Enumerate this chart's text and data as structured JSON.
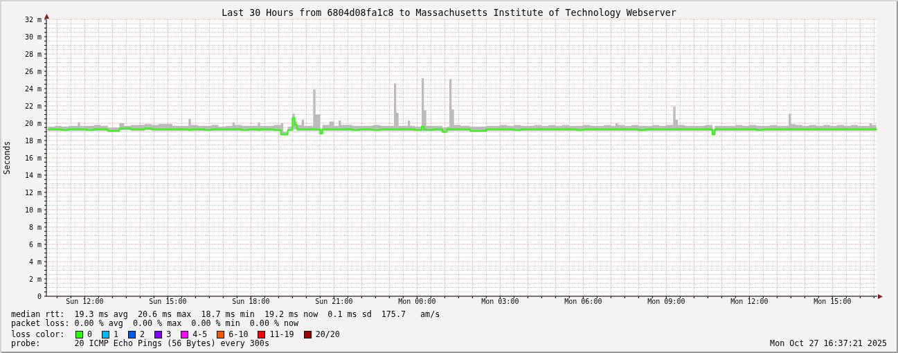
{
  "chart_data": {
    "type": "step",
    "title": "Last 30 Hours from 6804d08fa1c8 to Massachusetts Institute of Technology Webserver",
    "ylabel": "Seconds",
    "legend_title": "loss color:",
    "legend": "bottom",
    "grid": true,
    "xlim": [
      "2025-10-26T10:37",
      "2025-10-27T16:37"
    ],
    "xticks": [
      {
        "value": "2025-10-26T11:00",
        "label": null
      },
      {
        "value": "2025-10-26T11:30",
        "label": null
      },
      {
        "value": "2025-10-26T12:00",
        "label": "Sun 12:00"
      },
      {
        "value": "2025-10-26T12:30",
        "label": null
      },
      {
        "value": "2025-10-26T13:00",
        "label": null
      },
      {
        "value": "2025-10-26T13:30",
        "label": null
      },
      {
        "value": "2025-10-26T14:00",
        "label": null
      },
      {
        "value": "2025-10-26T14:30",
        "label": null
      },
      {
        "value": "2025-10-26T15:00",
        "label": "Sun 15:00"
      },
      {
        "value": "2025-10-26T15:30",
        "label": null
      },
      {
        "value": "2025-10-26T16:00",
        "label": null
      },
      {
        "value": "2025-10-26T16:30",
        "label": null
      },
      {
        "value": "2025-10-26T17:00",
        "label": null
      },
      {
        "value": "2025-10-26T17:30",
        "label": null
      },
      {
        "value": "2025-10-26T18:00",
        "label": "Sun 18:00"
      },
      {
        "value": "2025-10-26T18:30",
        "label": null
      },
      {
        "value": "2025-10-26T19:00",
        "label": null
      },
      {
        "value": "2025-10-26T19:30",
        "label": null
      },
      {
        "value": "2025-10-26T20:00",
        "label": null
      },
      {
        "value": "2025-10-26T20:30",
        "label": null
      },
      {
        "value": "2025-10-26T21:00",
        "label": "Sun 21:00"
      },
      {
        "value": "2025-10-26T21:30",
        "label": null
      },
      {
        "value": "2025-10-26T22:00",
        "label": null
      },
      {
        "value": "2025-10-26T22:30",
        "label": null
      },
      {
        "value": "2025-10-26T23:00",
        "label": null
      },
      {
        "value": "2025-10-26T23:30",
        "label": null
      },
      {
        "value": "2025-10-27T00:00",
        "label": "Mon 00:00"
      },
      {
        "value": "2025-10-27T00:30",
        "label": null
      },
      {
        "value": "2025-10-27T01:00",
        "label": null
      },
      {
        "value": "2025-10-27T01:30",
        "label": null
      },
      {
        "value": "2025-10-27T02:00",
        "label": null
      },
      {
        "value": "2025-10-27T02:30",
        "label": null
      },
      {
        "value": "2025-10-27T03:00",
        "label": "Mon 03:00"
      },
      {
        "value": "2025-10-27T03:30",
        "label": null
      },
      {
        "value": "2025-10-27T04:00",
        "label": null
      },
      {
        "value": "2025-10-27T04:30",
        "label": null
      },
      {
        "value": "2025-10-27T05:00",
        "label": null
      },
      {
        "value": "2025-10-27T05:30",
        "label": null
      },
      {
        "value": "2025-10-27T06:00",
        "label": "Mon 06:00"
      },
      {
        "value": "2025-10-27T06:30",
        "label": null
      },
      {
        "value": "2025-10-27T07:00",
        "label": null
      },
      {
        "value": "2025-10-27T07:30",
        "label": null
      },
      {
        "value": "2025-10-27T08:00",
        "label": null
      },
      {
        "value": "2025-10-27T08:30",
        "label": null
      },
      {
        "value": "2025-10-27T09:00",
        "label": "Mon 09:00"
      },
      {
        "value": "2025-10-27T09:30",
        "label": null
      },
      {
        "value": "2025-10-27T10:00",
        "label": null
      },
      {
        "value": "2025-10-27T10:30",
        "label": null
      },
      {
        "value": "2025-10-27T11:00",
        "label": null
      },
      {
        "value": "2025-10-27T11:30",
        "label": null
      },
      {
        "value": "2025-10-27T12:00",
        "label": "Mon 12:00"
      },
      {
        "value": "2025-10-27T12:30",
        "label": null
      },
      {
        "value": "2025-10-27T13:00",
        "label": null
      },
      {
        "value": "2025-10-27T13:30",
        "label": null
      },
      {
        "value": "2025-10-27T14:00",
        "label": null
      },
      {
        "value": "2025-10-27T14:30",
        "label": null
      },
      {
        "value": "2025-10-27T15:00",
        "label": "Mon 15:00"
      },
      {
        "value": "2025-10-27T15:30",
        "label": null
      },
      {
        "value": "2025-10-27T16:00",
        "label": null
      },
      {
        "value": "2025-10-27T16:30",
        "label": null
      }
    ],
    "ylim": [
      0,
      32
    ],
    "yticks": [
      0,
      {
        "value": 0.5,
        "label": null
      },
      {
        "value": 1,
        "label": null
      },
      {
        "value": 1.5,
        "label": null
      },
      {
        "value": 2,
        "label": "2 m"
      },
      {
        "value": 2.5,
        "label": null
      },
      {
        "value": 3,
        "label": null
      },
      {
        "value": 3.5,
        "label": null
      },
      {
        "value": 4,
        "label": "4 m"
      },
      {
        "value": 4.5,
        "label": null
      },
      {
        "value": 5,
        "label": null
      },
      {
        "value": 5.5,
        "label": null
      },
      {
        "value": 6,
        "label": "6 m"
      },
      {
        "value": 6.5,
        "label": null
      },
      {
        "value": 7,
        "label": null
      },
      {
        "value": 7.5,
        "label": null
      },
      {
        "value": 8,
        "label": "8 m"
      },
      {
        "value": 8.5,
        "label": null
      },
      {
        "value": 9,
        "label": null
      },
      {
        "value": 9.5,
        "label": null
      },
      {
        "value": 10,
        "label": "10 m"
      },
      {
        "value": 10.5,
        "label": null
      },
      {
        "value": 11,
        "label": null
      },
      {
        "value": 11.5,
        "label": null
      },
      {
        "value": 12,
        "label": "12 m"
      },
      {
        "value": 12.5,
        "label": null
      },
      {
        "value": 13,
        "label": null
      },
      {
        "value": 13.5,
        "label": null
      },
      {
        "value": 14,
        "label": "14 m"
      },
      {
        "value": 14.5,
        "label": null
      },
      {
        "value": 15,
        "label": null
      },
      {
        "value": 15.5,
        "label": null
      },
      {
        "value": 16,
        "label": "16 m"
      },
      {
        "value": 16.5,
        "label": null
      },
      {
        "value": 17,
        "label": null
      },
      {
        "value": 17.5,
        "label": null
      },
      {
        "value": 18,
        "label": "18 m"
      },
      {
        "value": 18.5,
        "label": null
      },
      {
        "value": 19,
        "label": null
      },
      {
        "value": 19.5,
        "label": null
      },
      {
        "value": 20,
        "label": "20 m"
      },
      {
        "value": 20.5,
        "label": null
      },
      {
        "value": 21,
        "label": null
      },
      {
        "value": 21.5,
        "label": null
      },
      {
        "value": 22,
        "label": "22 m"
      },
      {
        "value": 22.5,
        "label": null
      },
      {
        "value": 23,
        "label": null
      },
      {
        "value": 23.5,
        "label": null
      },
      {
        "value": 24,
        "label": "24 m"
      },
      {
        "value": 24.5,
        "label": null
      },
      {
        "value": 25,
        "label": null
      },
      {
        "value": 25.5,
        "label": null
      },
      {
        "value": 26,
        "label": "26 m"
      },
      {
        "value": 26.5,
        "label": null
      },
      {
        "value": 27,
        "label": null
      },
      {
        "value": 27.5,
        "label": null
      },
      {
        "value": 28,
        "label": "28 m"
      },
      {
        "value": 28.5,
        "label": null
      },
      {
        "value": 29,
        "label": null
      },
      {
        "value": 29.5,
        "label": null
      },
      {
        "value": 30,
        "label": "30 m"
      },
      {
        "value": 30.5,
        "label": null
      },
      {
        "value": 31,
        "label": null
      },
      {
        "value": 31.5,
        "label": null
      },
      {
        "value": 32,
        "label": "32 m"
      }
    ],
    "x": [
      "2025-10-26T10:40",
      "2025-10-26T10:55",
      "2025-10-26T11:10",
      "2025-10-26T11:25",
      "2025-10-26T11:45",
      "2025-10-26T11:50",
      "2025-10-26T12:05",
      "2025-10-26T12:20",
      "2025-10-26T12:35",
      "2025-10-26T12:50",
      "2025-10-26T13:15",
      "2025-10-26T13:25",
      "2025-10-26T13:40",
      "2025-10-26T13:55",
      "2025-10-26T14:10",
      "2025-10-26T14:25",
      "2025-10-26T14:40",
      "2025-10-26T15:10",
      "2025-10-26T15:25",
      "2025-10-26T15:45",
      "2025-10-26T15:50",
      "2025-10-26T16:05",
      "2025-10-26T16:20",
      "2025-10-26T16:35",
      "2025-10-26T16:50",
      "2025-10-26T17:05",
      "2025-10-26T17:20",
      "2025-10-26T17:25",
      "2025-10-26T17:40",
      "2025-10-26T17:55",
      "2025-10-26T18:15",
      "2025-10-26T18:20",
      "2025-10-26T18:35",
      "2025-10-26T18:50",
      "2025-10-26T19:05",
      "2025-10-26T19:10",
      "2025-10-26T19:20",
      "2025-10-26T19:30",
      "2025-10-26T19:35",
      "2025-10-26T19:40",
      "2025-10-26T19:50",
      "2025-10-26T19:55",
      "2025-10-26T20:15",
      "2025-10-26T20:20",
      "2025-10-26T20:30",
      "2025-10-26T20:35",
      "2025-10-26T20:50",
      "2025-10-26T21:00",
      "2025-10-26T21:10",
      "2025-10-26T21:15",
      "2025-10-26T21:40",
      "2025-10-26T21:55",
      "2025-10-26T22:10",
      "2025-10-26T22:25",
      "2025-10-26T22:40",
      "2025-10-26T22:55",
      "2025-10-26T23:10",
      "2025-10-26T23:15",
      "2025-10-26T23:20",
      "2025-10-26T23:40",
      "2025-10-26T23:45",
      "2025-10-26T23:55",
      "2025-10-27T00:10",
      "2025-10-27T00:15",
      "2025-10-27T00:20",
      "2025-10-27T00:35",
      "2025-10-27T00:55",
      "2025-10-27T01:05",
      "2025-10-27T01:10",
      "2025-10-27T01:15",
      "2025-10-27T01:20",
      "2025-10-27T01:35",
      "2025-10-27T01:55",
      "2025-10-27T02:30",
      "2025-10-27T02:45",
      "2025-10-27T03:00",
      "2025-10-27T03:15",
      "2025-10-27T03:30",
      "2025-10-27T03:45",
      "2025-10-27T04:00",
      "2025-10-27T04:15",
      "2025-10-27T04:30",
      "2025-10-27T04:45",
      "2025-10-27T05:00",
      "2025-10-27T05:15",
      "2025-10-27T05:30",
      "2025-10-27T05:45",
      "2025-10-27T06:00",
      "2025-10-27T06:15",
      "2025-10-27T06:30",
      "2025-10-27T06:45",
      "2025-10-27T07:00",
      "2025-10-27T07:10",
      "2025-10-27T07:15",
      "2025-10-27T07:30",
      "2025-10-27T07:45",
      "2025-10-27T08:00",
      "2025-10-27T08:15",
      "2025-10-27T08:30",
      "2025-10-27T08:45",
      "2025-10-27T09:00",
      "2025-10-27T09:15",
      "2025-10-27T09:20",
      "2025-10-27T09:25",
      "2025-10-27T09:40",
      "2025-10-27T09:55",
      "2025-10-27T10:10",
      "2025-10-27T10:25",
      "2025-10-27T10:40",
      "2025-10-27T10:45",
      "2025-10-27T11:00",
      "2025-10-27T11:15",
      "2025-10-27T11:30",
      "2025-10-27T11:45",
      "2025-10-27T12:00",
      "2025-10-27T12:15",
      "2025-10-27T12:30",
      "2025-10-27T12:45",
      "2025-10-27T13:00",
      "2025-10-27T13:15",
      "2025-10-27T13:25",
      "2025-10-27T13:30",
      "2025-10-27T13:40",
      "2025-10-27T13:55",
      "2025-10-27T14:10",
      "2025-10-27T14:25",
      "2025-10-27T14:40",
      "2025-10-27T14:55",
      "2025-10-27T15:10",
      "2025-10-27T15:25",
      "2025-10-27T15:40",
      "2025-10-27T15:55",
      "2025-10-27T16:10",
      "2025-10-27T16:20",
      "2025-10-27T16:25",
      "2025-10-27T16:35"
    ],
    "series": [
      {
        "name": "0",
        "color": "#26ff00",
        "values": [
          19.3,
          19.3,
          19.2,
          19.3,
          19.3,
          19.3,
          19.2,
          19.3,
          19.3,
          19.1,
          19.4,
          19.4,
          19.3,
          19.3,
          19.4,
          19.3,
          19.3,
          19.3,
          19.3,
          19.2,
          19.3,
          19.3,
          19.2,
          19.3,
          19.3,
          19.3,
          19.3,
          19.3,
          19.2,
          19.3,
          19.2,
          19.3,
          19.3,
          19.2,
          18.7,
          18.7,
          19.2,
          20.6,
          19.8,
          19.3,
          19.3,
          19.3,
          19.3,
          19.3,
          18.8,
          19.3,
          19.3,
          19.3,
          19.3,
          19.3,
          19.2,
          19.3,
          19.3,
          19.2,
          19.3,
          19.3,
          19.3,
          19.3,
          19.3,
          19.3,
          19.3,
          19.2,
          19.6,
          19.3,
          19.2,
          19.3,
          19,
          19.3,
          19.3,
          19.3,
          19.3,
          19.3,
          19.1,
          19.3,
          19.3,
          19.3,
          19.3,
          19.2,
          19.3,
          19.3,
          19.3,
          19.3,
          19.3,
          19.3,
          19.3,
          19.3,
          19.2,
          19.3,
          19.3,
          19.3,
          19.3,
          19.3,
          19.3,
          19.3,
          19.3,
          19.3,
          19.2,
          19.3,
          19.3,
          19.3,
          19.3,
          19.3,
          19.3,
          19.3,
          19.3,
          19.3,
          19.3,
          19.3,
          18.7,
          19.3,
          19.3,
          19.3,
          19.3,
          19.3,
          19.3,
          19.2,
          19.3,
          19.3,
          19.3,
          19.3,
          19.3,
          19.3,
          19.3,
          19.3,
          19.3,
          19.3,
          19.3,
          19.3,
          19.3,
          19.3,
          19.3,
          19.3,
          19.3,
          19.3,
          19.3,
          19.2
        ],
        "lower": [
          19.1,
          19.1,
          19.1,
          19.1,
          19.1,
          19.1,
          19.1,
          19.1,
          19.1,
          19,
          19.2,
          19.2,
          19.1,
          19.1,
          19.2,
          19.1,
          19.1,
          19.1,
          19.1,
          19.1,
          19.1,
          19.1,
          19.1,
          19.1,
          19.1,
          19.1,
          19.1,
          19.1,
          19.1,
          19.1,
          19.1,
          19.1,
          19.1,
          19.1,
          18.6,
          18.6,
          19.1,
          19.3,
          19.3,
          19.1,
          19.1,
          19.1,
          19.1,
          19.1,
          18.7,
          19.1,
          19.1,
          19.1,
          19.1,
          19.1,
          19.1,
          19.1,
          19.1,
          19.1,
          19.1,
          19.1,
          19.1,
          19.1,
          19.1,
          19.1,
          19.1,
          19.1,
          19.1,
          19.1,
          19.1,
          19.1,
          18.9,
          19.1,
          19.1,
          19.1,
          19.1,
          19.1,
          19,
          19.1,
          19.1,
          19.1,
          19.1,
          19.1,
          19.1,
          19.1,
          19.1,
          19.1,
          19.1,
          19.1,
          19.1,
          19.1,
          19.1,
          19.1,
          19.1,
          19.1,
          19.1,
          19.1,
          19.1,
          19.1,
          19.1,
          19.1,
          19.1,
          19.1,
          19.1,
          19.1,
          19.1,
          19.1,
          19.1,
          19.1,
          19.1,
          19.1,
          19.1,
          19.1,
          18.6,
          19.1,
          19.1,
          19.1,
          19.1,
          19.1,
          19.1,
          19.1,
          19.1,
          19.1,
          19.1,
          19.1,
          19.1,
          19.1,
          19.1,
          19.1,
          19.1,
          19.1,
          19.1,
          19.1,
          19.1,
          19.1,
          19.1,
          19.1,
          19.1,
          19.1,
          19.1,
          19.1
        ],
        "upper": [
          19.6,
          19.7,
          19.6,
          19.7,
          20.1,
          19.7,
          19.7,
          19.8,
          19.7,
          19.5,
          20,
          19.7,
          19.8,
          19.8,
          19.9,
          19.8,
          19.9,
          19.7,
          19.7,
          20.5,
          19.8,
          19.7,
          19.7,
          19.8,
          19.6,
          19.7,
          20.1,
          19.8,
          19.7,
          19.7,
          20.1,
          19.7,
          19.7,
          19.8,
          20,
          19,
          19.6,
          21.1,
          20.2,
          19.8,
          20.4,
          19.7,
          23.9,
          21,
          19.2,
          19.8,
          20.2,
          19.7,
          20.3,
          19.8,
          19.7,
          19.7,
          19.7,
          19.8,
          19.7,
          19.7,
          24.6,
          21.2,
          19.7,
          20.3,
          19.7,
          19.6,
          25.2,
          21.5,
          19.7,
          19.7,
          19.5,
          19.6,
          25.1,
          21.6,
          19.8,
          19.7,
          19.6,
          19.7,
          19.7,
          19.8,
          19.7,
          19.8,
          19.7,
          19.7,
          19.8,
          19.7,
          19.8,
          19.7,
          19.8,
          19.7,
          19.7,
          19.8,
          19.7,
          19.7,
          19.8,
          19.7,
          20,
          19.8,
          19.7,
          19.8,
          19.7,
          19.7,
          19.8,
          19.7,
          19.8,
          21.9,
          20.4,
          19.8,
          19.7,
          19.7,
          19.7,
          19.8,
          19.2,
          19.7,
          19.7,
          19.7,
          19.8,
          19.7,
          19.8,
          19.7,
          19.7,
          19.8,
          19.7,
          19.7,
          21.1,
          19.9,
          19.8,
          19.7,
          19.8,
          19.7,
          19.8,
          19.7,
          19.8,
          19.7,
          19.8,
          19.7,
          19.7,
          20,
          19.8,
          19.7
        ]
      },
      {
        "name": "1",
        "color": "#00b8ff",
        "values": [
          null,
          null,
          null,
          null,
          null,
          null,
          null,
          null,
          null,
          null,
          null,
          null,
          null,
          null,
          null,
          null,
          null,
          null,
          null,
          null,
          null,
          null,
          null,
          null,
          null,
          null,
          null,
          null,
          null,
          null,
          null,
          null,
          null,
          null,
          null,
          null,
          null,
          null,
          null,
          null,
          null,
          null,
          null,
          null,
          null,
          null,
          null,
          null,
          null,
          null,
          null,
          null,
          null,
          null,
          null,
          null,
          null,
          null,
          null,
          null,
          null,
          null,
          null,
          null,
          null,
          null,
          null,
          null,
          null,
          null,
          null,
          null,
          null,
          null,
          null,
          null,
          null,
          null,
          null,
          null,
          null,
          null,
          null,
          null,
          null,
          null,
          null,
          null,
          null,
          null,
          null,
          null,
          null,
          null,
          null,
          null,
          null,
          null,
          null,
          null,
          null,
          null,
          null,
          null,
          null,
          null,
          null,
          null,
          null,
          null,
          null,
          null,
          null,
          null,
          null,
          null,
          null,
          null,
          null,
          null,
          null,
          null,
          null,
          null,
          null,
          null,
          null,
          null,
          null,
          null,
          null,
          null,
          null,
          null,
          null,
          null
        ]
      },
      {
        "name": "2",
        "color": "#0059ff",
        "values": [
          null,
          null,
          null,
          null,
          null,
          null,
          null,
          null,
          null,
          null,
          null,
          null,
          null,
          null,
          null,
          null,
          null,
          null,
          null,
          null,
          null,
          null,
          null,
          null,
          null,
          null,
          null,
          null,
          null,
          null,
          null,
          null,
          null,
          null,
          null,
          null,
          null,
          null,
          null,
          null,
          null,
          null,
          null,
          null,
          null,
          null,
          null,
          null,
          null,
          null,
          null,
          null,
          null,
          null,
          null,
          null,
          null,
          null,
          null,
          null,
          null,
          null,
          null,
          null,
          null,
          null,
          null,
          null,
          null,
          null,
          null,
          null,
          null,
          null,
          null,
          null,
          null,
          null,
          null,
          null,
          null,
          null,
          null,
          null,
          null,
          null,
          null,
          null,
          null,
          null,
          null,
          null,
          null,
          null,
          null,
          null,
          null,
          null,
          null,
          null,
          null,
          null,
          null,
          null,
          null,
          null,
          null,
          null,
          null,
          null,
          null,
          null,
          null,
          null,
          null,
          null,
          null,
          null,
          null,
          null,
          null,
          null,
          null,
          null,
          null,
          null,
          null,
          null,
          null,
          null,
          null,
          null,
          null,
          null,
          null,
          null
        ]
      },
      {
        "name": "3",
        "color": "#7e00ff",
        "values": [
          null,
          null,
          null,
          null,
          null,
          null,
          null,
          null,
          null,
          null,
          null,
          null,
          null,
          null,
          null,
          null,
          null,
          null,
          null,
          null,
          null,
          null,
          null,
          null,
          null,
          null,
          null,
          null,
          null,
          null,
          null,
          null,
          null,
          null,
          null,
          null,
          null,
          null,
          null,
          null,
          null,
          null,
          null,
          null,
          null,
          null,
          null,
          null,
          null,
          null,
          null,
          null,
          null,
          null,
          null,
          null,
          null,
          null,
          null,
          null,
          null,
          null,
          null,
          null,
          null,
          null,
          null,
          null,
          null,
          null,
          null,
          null,
          null,
          null,
          null,
          null,
          null,
          null,
          null,
          null,
          null,
          null,
          null,
          null,
          null,
          null,
          null,
          null,
          null,
          null,
          null,
          null,
          null,
          null,
          null,
          null,
          null,
          null,
          null,
          null,
          null,
          null,
          null,
          null,
          null,
          null,
          null,
          null,
          null,
          null,
          null,
          null,
          null,
          null,
          null,
          null,
          null,
          null,
          null,
          null,
          null,
          null,
          null,
          null,
          null,
          null,
          null,
          null,
          null,
          null,
          null,
          null,
          null,
          null,
          null,
          null
        ]
      },
      {
        "name": "4-5",
        "color": "#ff00ff",
        "values": [
          null,
          null,
          null,
          null,
          null,
          null,
          null,
          null,
          null,
          null,
          null,
          null,
          null,
          null,
          null,
          null,
          null,
          null,
          null,
          null,
          null,
          null,
          null,
          null,
          null,
          null,
          null,
          null,
          null,
          null,
          null,
          null,
          null,
          null,
          null,
          null,
          null,
          null,
          null,
          null,
          null,
          null,
          null,
          null,
          null,
          null,
          null,
          null,
          null,
          null,
          null,
          null,
          null,
          null,
          null,
          null,
          null,
          null,
          null,
          null,
          null,
          null,
          null,
          null,
          null,
          null,
          null,
          null,
          null,
          null,
          null,
          null,
          null,
          null,
          null,
          null,
          null,
          null,
          null,
          null,
          null,
          null,
          null,
          null,
          null,
          null,
          null,
          null,
          null,
          null,
          null,
          null,
          null,
          null,
          null,
          null,
          null,
          null,
          null,
          null,
          null,
          null,
          null,
          null,
          null,
          null,
          null,
          null,
          null,
          null,
          null,
          null,
          null,
          null,
          null,
          null,
          null,
          null,
          null,
          null,
          null,
          null,
          null,
          null,
          null,
          null,
          null,
          null,
          null,
          null,
          null,
          null,
          null,
          null,
          null,
          null
        ]
      },
      {
        "name": "6-10",
        "color": "#ff5500",
        "values": [
          null,
          null,
          null,
          null,
          null,
          null,
          null,
          null,
          null,
          null,
          null,
          null,
          null,
          null,
          null,
          null,
          null,
          null,
          null,
          null,
          null,
          null,
          null,
          null,
          null,
          null,
          null,
          null,
          null,
          null,
          null,
          null,
          null,
          null,
          null,
          null,
          null,
          null,
          null,
          null,
          null,
          null,
          null,
          null,
          null,
          null,
          null,
          null,
          null,
          null,
          null,
          null,
          null,
          null,
          null,
          null,
          null,
          null,
          null,
          null,
          null,
          null,
          null,
          null,
          null,
          null,
          null,
          null,
          null,
          null,
          null,
          null,
          null,
          null,
          null,
          null,
          null,
          null,
          null,
          null,
          null,
          null,
          null,
          null,
          null,
          null,
          null,
          null,
          null,
          null,
          null,
          null,
          null,
          null,
          null,
          null,
          null,
          null,
          null,
          null,
          null,
          null,
          null,
          null,
          null,
          null,
          null,
          null,
          null,
          null,
          null,
          null,
          null,
          null,
          null,
          null,
          null,
          null,
          null,
          null,
          null,
          null,
          null,
          null,
          null,
          null,
          null,
          null,
          null,
          null,
          null,
          null,
          null,
          null,
          null,
          null
        ]
      },
      {
        "name": "11-19",
        "color": "#ff0000",
        "values": [
          null,
          null,
          null,
          null,
          null,
          null,
          null,
          null,
          null,
          null,
          null,
          null,
          null,
          null,
          null,
          null,
          null,
          null,
          null,
          null,
          null,
          null,
          null,
          null,
          null,
          null,
          null,
          null,
          null,
          null,
          null,
          null,
          null,
          null,
          null,
          null,
          null,
          null,
          null,
          null,
          null,
          null,
          null,
          null,
          null,
          null,
          null,
          null,
          null,
          null,
          null,
          null,
          null,
          null,
          null,
          null,
          null,
          null,
          null,
          null,
          null,
          null,
          null,
          null,
          null,
          null,
          null,
          null,
          null,
          null,
          null,
          null,
          null,
          null,
          null,
          null,
          null,
          null,
          null,
          null,
          null,
          null,
          null,
          null,
          null,
          null,
          null,
          null,
          null,
          null,
          null,
          null,
          null,
          null,
          null,
          null,
          null,
          null,
          null,
          null,
          null,
          null,
          null,
          null,
          null,
          null,
          null,
          null,
          null,
          null,
          null,
          null,
          null,
          null,
          null,
          null,
          null,
          null,
          null,
          null,
          null,
          null,
          null,
          null,
          null,
          null,
          null,
          null,
          null,
          null,
          null,
          null,
          null,
          null,
          null,
          null
        ]
      },
      {
        "name": "20/20",
        "color": "#a10000",
        "values": [
          null,
          null,
          null,
          null,
          null,
          null,
          null,
          null,
          null,
          null,
          null,
          null,
          null,
          null,
          null,
          null,
          null,
          null,
          null,
          null,
          null,
          null,
          null,
          null,
          null,
          null,
          null,
          null,
          null,
          null,
          null,
          null,
          null,
          null,
          null,
          null,
          null,
          null,
          null,
          null,
          null,
          null,
          null,
          null,
          null,
          null,
          null,
          null,
          null,
          null,
          null,
          null,
          null,
          null,
          null,
          null,
          null,
          null,
          null,
          null,
          null,
          null,
          null,
          null,
          null,
          null,
          null,
          null,
          null,
          null,
          null,
          null,
          null,
          null,
          null,
          null,
          null,
          null,
          null,
          null,
          null,
          null,
          null,
          null,
          null,
          null,
          null,
          null,
          null,
          null,
          null,
          null,
          null,
          null,
          null,
          null,
          null,
          null,
          null,
          null,
          null,
          null,
          null,
          null,
          null,
          null,
          null,
          null,
          null,
          null,
          null,
          null,
          null,
          null,
          null,
          null,
          null,
          null,
          null,
          null,
          null,
          null,
          null,
          null,
          null,
          null,
          null,
          null,
          null,
          null,
          null,
          null,
          null,
          null,
          null,
          null
        ]
      }
    ],
    "annotations": [
      "median rtt:  19.3 ms avg  20.6 ms max  18.7 ms min  19.2 ms now  0.1 ms sd  175.7   am/s",
      "packet loss: 0.00 % avg  0.00 % max  0.00 % min  0.00 % now",
      "probe:       20 ICMP Echo Pings (56 Bytes) every 300s",
      "Mon Oct 27 16:37:21 2025"
    ]
  }
}
